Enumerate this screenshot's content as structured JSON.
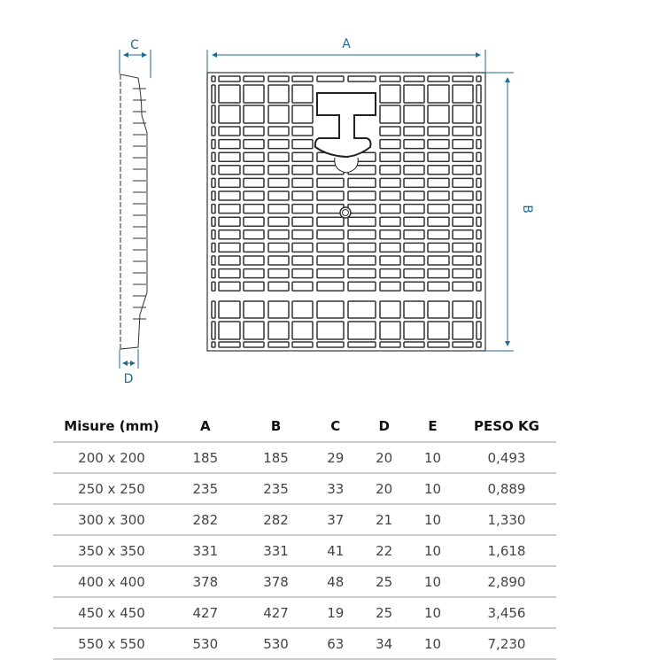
{
  "drawing": {
    "labels": {
      "A": "A",
      "B": "B",
      "C": "C",
      "D": "D"
    },
    "dimension_color": "#1f6e92",
    "line_color": "#333333"
  },
  "table": {
    "headers": [
      "Misure (mm)",
      "A",
      "B",
      "C",
      "D",
      "E",
      "PESO KG"
    ],
    "rows": [
      [
        "200 x 200",
        "185",
        "185",
        "29",
        "20",
        "10",
        "0,493"
      ],
      [
        "250 x 250",
        "235",
        "235",
        "33",
        "20",
        "10",
        "0,889"
      ],
      [
        "300 x 300",
        "282",
        "282",
        "37",
        "21",
        "10",
        "1,330"
      ],
      [
        "350 x 350",
        "331",
        "331",
        "41",
        "22",
        "10",
        "1,618"
      ],
      [
        "400 x 400",
        "378",
        "378",
        "48",
        "25",
        "10",
        "2,890"
      ],
      [
        "450 x 450",
        "427",
        "427",
        "19",
        "25",
        "10",
        "3,456"
      ],
      [
        "550 x 550",
        "530",
        "530",
        "63",
        "34",
        "10",
        "7,230"
      ]
    ]
  }
}
